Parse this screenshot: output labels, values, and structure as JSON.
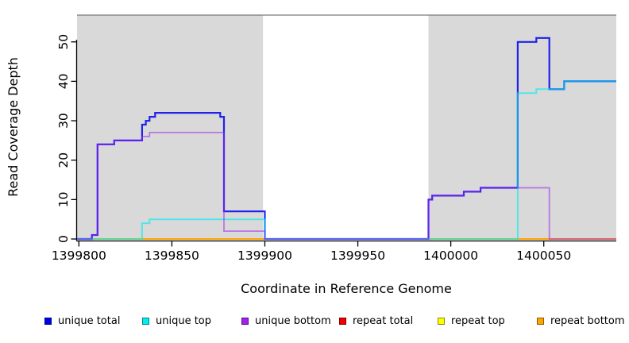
{
  "chart_data": {
    "type": "line",
    "subtype": "step-coverage",
    "title": "",
    "xlabel": "Coordinate in Reference Genome",
    "ylabel": "Read Coverage Depth",
    "xlim": [
      1399799,
      1400089
    ],
    "ylim": [
      0,
      57
    ],
    "x_ticks": [
      1399800,
      1399850,
      1399900,
      1399950,
      1400000,
      1400050
    ],
    "y_ticks": [
      0,
      10,
      20,
      30,
      40,
      50
    ],
    "grid": false,
    "legend_position": "bottom",
    "plot_bg": "#ffffff",
    "shaded_region_color": "#d9d9d9",
    "shaded_region_border": "#7a7a7a",
    "shaded_regions": [
      {
        "from": 1399799,
        "to": 1399899
      },
      {
        "from": 1399988,
        "to": 1400089
      }
    ],
    "series": [
      {
        "name": "repeat top",
        "color": "#FFFF00",
        "alpha": 1,
        "width": 1.6,
        "steps": [
          [
            1399799,
            0
          ]
        ]
      },
      {
        "name": "repeat total",
        "color": "#EE0000",
        "alpha": 1,
        "width": 1.6,
        "steps": [
          [
            1399799,
            0
          ]
        ]
      },
      {
        "name": "repeat bottom",
        "color": "#FFA500",
        "alpha": 1,
        "width": 2,
        "steps": [
          [
            1399799,
            0
          ]
        ]
      },
      {
        "name": "unique total",
        "color": "#0000EE",
        "alpha": 0.85,
        "width": 2.2,
        "steps": [
          [
            1399799,
            0
          ],
          [
            1399807,
            1
          ],
          [
            1399810,
            24
          ],
          [
            1399819,
            25
          ],
          [
            1399834,
            29
          ],
          [
            1399836,
            30
          ],
          [
            1399838,
            31
          ],
          [
            1399841,
            32
          ],
          [
            1399876,
            31
          ],
          [
            1399878,
            7
          ],
          [
            1399900,
            0
          ],
          [
            1399988,
            10
          ],
          [
            1399990,
            11
          ],
          [
            1400007,
            12
          ],
          [
            1400016,
            13
          ],
          [
            1400036,
            50
          ],
          [
            1400046,
            51
          ],
          [
            1400053,
            38
          ],
          [
            1400061,
            40
          ]
        ]
      },
      {
        "name": "unique top",
        "color": "#00EEEE",
        "alpha": 0.62,
        "width": 2,
        "steps": [
          [
            1399799,
            0
          ],
          [
            1399834,
            4
          ],
          [
            1399838,
            5
          ],
          [
            1399900,
            0
          ],
          [
            1400036,
            37
          ],
          [
            1400046,
            38
          ],
          [
            1400061,
            40
          ]
        ]
      },
      {
        "name": "unique bottom",
        "color": "#A020F0",
        "alpha": 0.55,
        "width": 1.8,
        "steps": [
          [
            1399799,
            0
          ],
          [
            1399807,
            1
          ],
          [
            1399810,
            24
          ],
          [
            1399819,
            25
          ],
          [
            1399834,
            26
          ],
          [
            1399838,
            27
          ],
          [
            1399878,
            2
          ],
          [
            1399900,
            0
          ],
          [
            1399988,
            10
          ],
          [
            1399990,
            11
          ],
          [
            1400007,
            12
          ],
          [
            1400016,
            13
          ],
          [
            1400053,
            0
          ]
        ]
      }
    ],
    "legend": [
      {
        "label": "unique total",
        "color": "#0000EE"
      },
      {
        "label": "unique top",
        "color": "#00EEEE"
      },
      {
        "label": "unique bottom",
        "color": "#A020F0"
      },
      {
        "label": "repeat total",
        "color": "#EE0000"
      },
      {
        "label": "repeat top",
        "color": "#FFFF00"
      },
      {
        "label": "repeat bottom",
        "color": "#FFA500"
      }
    ]
  }
}
